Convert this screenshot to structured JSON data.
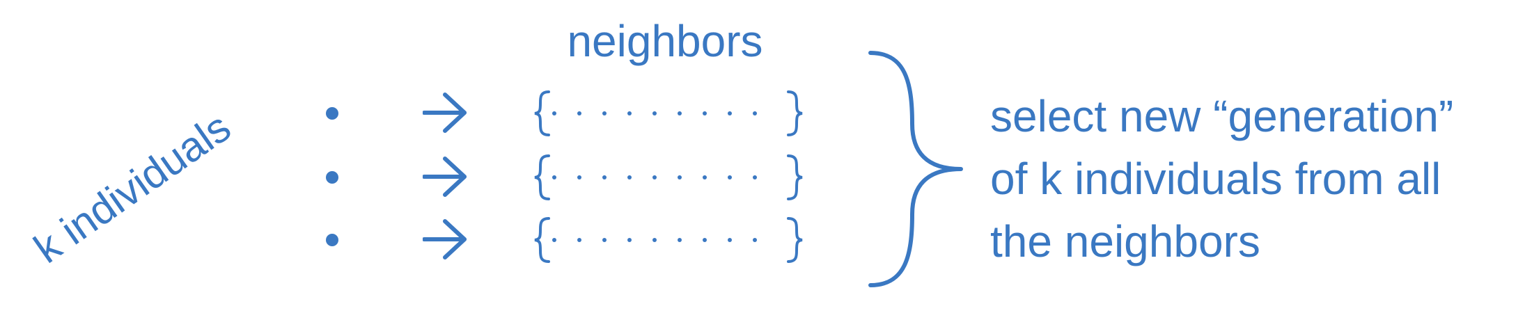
{
  "diagram": {
    "rotated_label": "k individuals",
    "title": "neighbors",
    "rows": [
      {
        "id": "row-1"
      },
      {
        "id": "row-2"
      },
      {
        "id": "row-3"
      }
    ],
    "description_lines": [
      "select new “generation”",
      "of k individuals from all",
      "the neighbors"
    ],
    "color": "#3a78c2"
  }
}
